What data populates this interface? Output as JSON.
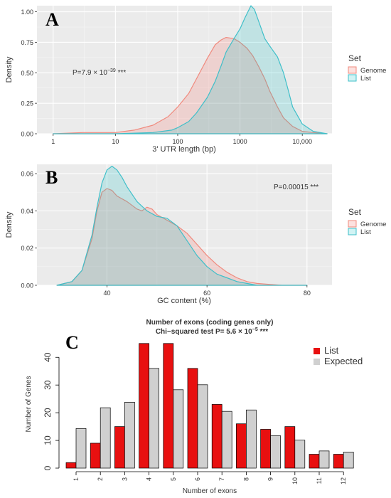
{
  "chart_data": [
    {
      "panel": "A",
      "type": "area",
      "xlabel": "3' UTR length (bp)",
      "ylabel": "Density",
      "x_scale": "log10",
      "xlim": [
        0.55,
        30000
      ],
      "ylim": [
        0,
        1.05
      ],
      "x_ticks": [
        1,
        10,
        100,
        1000,
        10000
      ],
      "x_tick_labels": [
        "1",
        "10",
        "100",
        "1000",
        "10,000"
      ],
      "y_ticks": [
        0,
        0.25,
        0.5,
        0.75,
        1.0
      ],
      "y_tick_labels": [
        "0.00",
        "0.25",
        "0.50",
        "0.75",
        "1.00"
      ],
      "annotation_pre": "P=7.9 × 10",
      "annotation_exp": "−39",
      "annotation_post": " ***",
      "legend_title": "Set",
      "legend_position": "right",
      "grid": true,
      "series": [
        {
          "name": "Genome",
          "color": "#F08A7E",
          "fill": "rgba(248,118,109,0.22)",
          "x": [
            1,
            3,
            6,
            10,
            20,
            40,
            70,
            100,
            150,
            200,
            300,
            400,
            500,
            600,
            800,
            1000,
            1300,
            1600,
            2000,
            2500,
            3000,
            4000,
            5000,
            7000,
            10000,
            15000,
            25000
          ],
          "y": [
            0.0,
            0.01,
            0.01,
            0.01,
            0.03,
            0.07,
            0.14,
            0.22,
            0.33,
            0.45,
            0.62,
            0.73,
            0.77,
            0.79,
            0.78,
            0.75,
            0.7,
            0.64,
            0.55,
            0.45,
            0.35,
            0.22,
            0.13,
            0.06,
            0.02,
            0.01,
            0.0
          ]
        },
        {
          "name": "List",
          "color": "#3FBFC9",
          "fill": "rgba(0,191,196,0.18)",
          "x": [
            1,
            10,
            40,
            80,
            100,
            150,
            200,
            300,
            400,
            500,
            600,
            800,
            1000,
            1200,
            1500,
            1700,
            2000,
            2500,
            3000,
            4000,
            5000,
            6000,
            7000,
            10000,
            15000,
            25000
          ],
          "y": [
            0.0,
            0.0,
            0.01,
            0.03,
            0.05,
            0.1,
            0.17,
            0.3,
            0.43,
            0.56,
            0.67,
            0.78,
            0.86,
            0.95,
            1.05,
            1.02,
            0.92,
            0.78,
            0.72,
            0.63,
            0.5,
            0.35,
            0.22,
            0.08,
            0.02,
            0.0
          ]
        }
      ]
    },
    {
      "panel": "B",
      "type": "area",
      "xlabel": "GC content (%)",
      "ylabel": "Density",
      "xlim": [
        26,
        85
      ],
      "ylim": [
        0,
        0.065
      ],
      "x_ticks": [
        40,
        60,
        80
      ],
      "x_tick_labels": [
        "40",
        "60",
        "80"
      ],
      "y_ticks": [
        0,
        0.02,
        0.04,
        0.06
      ],
      "y_tick_labels": [
        "0.00",
        "0.02",
        "0.04",
        "0.06"
      ],
      "annotation": "P=0.00015 ***",
      "legend_title": "Set",
      "legend_position": "right",
      "grid": true,
      "series": [
        {
          "name": "Genome",
          "color": "#F08A7E",
          "fill": "rgba(248,118,109,0.22)",
          "x": [
            30,
            33,
            35,
            37,
            38,
            39,
            40,
            41,
            42,
            44,
            46,
            47,
            48,
            49,
            50,
            52,
            54,
            56,
            58,
            60,
            62,
            64,
            66,
            68,
            70,
            75,
            80
          ],
          "y": [
            0.0,
            0.002,
            0.008,
            0.025,
            0.04,
            0.05,
            0.052,
            0.051,
            0.048,
            0.045,
            0.041,
            0.04,
            0.042,
            0.041,
            0.038,
            0.035,
            0.032,
            0.028,
            0.022,
            0.016,
            0.011,
            0.007,
            0.004,
            0.002,
            0.001,
            0.0,
            0.0
          ]
        },
        {
          "name": "List",
          "color": "#3FBFC9",
          "fill": "rgba(0,191,196,0.18)",
          "x": [
            30,
            33,
            35,
            37,
            38,
            39,
            40,
            41,
            42,
            43,
            44,
            46,
            48,
            50,
            52,
            54,
            56,
            58,
            60,
            62,
            64,
            66,
            68,
            70,
            75,
            80
          ],
          "y": [
            0.0,
            0.002,
            0.008,
            0.027,
            0.042,
            0.055,
            0.062,
            0.064,
            0.062,
            0.058,
            0.053,
            0.045,
            0.04,
            0.037,
            0.036,
            0.032,
            0.024,
            0.016,
            0.01,
            0.006,
            0.004,
            0.002,
            0.001,
            0.0,
            0.0,
            0.0
          ]
        }
      ]
    },
    {
      "panel": "C",
      "type": "bar",
      "title": "Number of exons (coding genes only)",
      "subtitle_pre": "Chi−squared test P= 5.6 × 10",
      "subtitle_exp": "−5",
      "subtitle_post": " ***",
      "xlabel": "Number of exons",
      "ylabel": "Number of Genes",
      "categories": [
        "1",
        "2",
        "3",
        "4",
        "5",
        "6",
        "7",
        "8",
        "9",
        "10",
        "11",
        "12"
      ],
      "ylim": [
        0,
        47
      ],
      "y_ticks": [
        0,
        10,
        20,
        30,
        40
      ],
      "legend_position": "top-right",
      "grid": false,
      "series": [
        {
          "name": "List",
          "color": "#E81010",
          "values": [
            2,
            9,
            15,
            45,
            45,
            36,
            23,
            16,
            14,
            15,
            5,
            5
          ]
        },
        {
          "name": "Expected",
          "color": "#D0D0D0",
          "values": [
            14.3,
            21.8,
            23.8,
            36,
            28.3,
            30.1,
            20.5,
            21,
            11.7,
            10.1,
            6.2,
            5.8
          ]
        }
      ]
    }
  ]
}
